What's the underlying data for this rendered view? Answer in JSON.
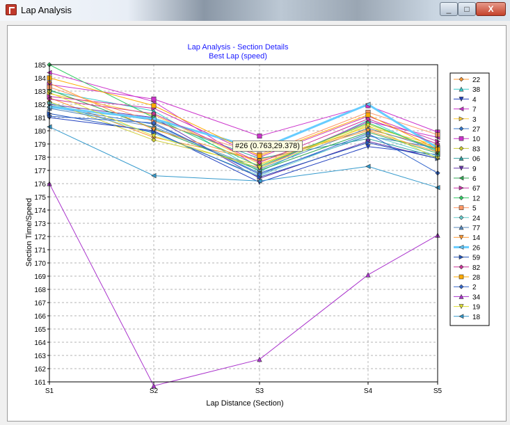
{
  "window": {
    "title": "Lap Analysis",
    "minimize_glyph": "_",
    "maximize_glyph": "□",
    "close_glyph": "X"
  },
  "tooltip": {
    "text": "#26 (0.763,29.378)"
  },
  "chart_data": {
    "type": "line",
    "title": "Lap Analysis - Section Details",
    "subtitle": "Best Lap (speed)",
    "xlabel": "Lap Distance (Section)",
    "ylabel": "Section Time/Speed",
    "categories": [
      "S1",
      "S2",
      "S3",
      "S4",
      "S5"
    ],
    "ylim": [
      161,
      185
    ],
    "yticks": [
      161,
      162,
      163,
      164,
      165,
      166,
      167,
      168,
      169,
      170,
      171,
      172,
      173,
      174,
      175,
      176,
      177,
      178,
      179,
      180,
      181,
      182,
      183,
      184,
      185
    ],
    "grid": true,
    "legend_position": "right",
    "series": [
      {
        "name": "22",
        "color": "#ff9933",
        "marker": "diamond",
        "values": [
          182.5,
          179.5,
          177.8,
          180.1,
          178.8
        ]
      },
      {
        "name": "38",
        "color": "#33cccc",
        "marker": "triangle",
        "values": [
          183.0,
          181.5,
          176.9,
          180.8,
          178.4
        ]
      },
      {
        "name": "4",
        "color": "#1f3fbf",
        "marker": "triangle-down",
        "values": [
          181.0,
          180.0,
          176.1,
          178.8,
          178.2
        ]
      },
      {
        "name": "7",
        "color": "#cc33cc",
        "marker": "triangle-left",
        "values": [
          184.4,
          182.2,
          177.2,
          180.7,
          179.5
        ]
      },
      {
        "name": "3",
        "color": "#ffcc33",
        "marker": "triangle-right",
        "values": [
          182.8,
          181.2,
          177.5,
          180.3,
          178.9
        ]
      },
      {
        "name": "27",
        "color": "#3377cc",
        "marker": "diamond",
        "values": [
          181.8,
          180.5,
          176.8,
          179.6,
          178.7
        ]
      },
      {
        "name": "10",
        "color": "#cc33cc",
        "marker": "square",
        "values": [
          183.5,
          182.4,
          179.6,
          181.9,
          179.9
        ]
      },
      {
        "name": "83",
        "color": "#cccc33",
        "marker": "diamond",
        "values": [
          182.2,
          179.3,
          177.4,
          180.5,
          178.6
        ]
      },
      {
        "name": "06",
        "color": "#33a0a0",
        "marker": "triangle",
        "values": [
          181.9,
          180.8,
          177.9,
          179.4,
          178.0
        ]
      },
      {
        "name": "9",
        "color": "#6633aa",
        "marker": "triangle-down",
        "values": [
          182.0,
          181.0,
          176.4,
          179.2,
          177.9
        ]
      },
      {
        "name": "6",
        "color": "#33aa55",
        "marker": "triangle-left",
        "values": [
          183.1,
          180.2,
          177.0,
          179.9,
          178.3
        ]
      },
      {
        "name": "67",
        "color": "#cc33aa",
        "marker": "triangle-right",
        "values": [
          182.6,
          181.7,
          178.0,
          181.1,
          179.2
        ]
      },
      {
        "name": "12",
        "color": "#33cc66",
        "marker": "diamond",
        "values": [
          185.0,
          181.0,
          177.3,
          180.6,
          178.5
        ]
      },
      {
        "name": "5",
        "color": "#ff9966",
        "marker": "square",
        "values": [
          183.3,
          180.7,
          178.2,
          181.4,
          179.7
        ]
      },
      {
        "name": "24",
        "color": "#66cccc",
        "marker": "diamond",
        "values": [
          182.1,
          179.8,
          176.6,
          179.7,
          178.1
        ]
      },
      {
        "name": "77",
        "color": "#5588bb",
        "marker": "triangle",
        "values": [
          181.7,
          180.3,
          177.1,
          180.2,
          178.6
        ]
      },
      {
        "name": "14",
        "color": "#ff9933",
        "marker": "triangle-down",
        "values": [
          183.6,
          180.1,
          177.7,
          180.0,
          178.4
        ]
      },
      {
        "name": "26",
        "color": "#66ccff",
        "marker": "triangle-left",
        "values": [
          181.8,
          180.9,
          178.6,
          182.0,
          178.7
        ]
      },
      {
        "name": "59",
        "color": "#2255bb",
        "marker": "triangle-right",
        "values": [
          181.3,
          179.9,
          176.5,
          179.1,
          177.9
        ]
      },
      {
        "name": "82",
        "color": "#cc3399",
        "marker": "diamond",
        "values": [
          182.4,
          181.3,
          177.6,
          180.9,
          179.0
        ]
      },
      {
        "name": "28",
        "color": "#ffaa00",
        "marker": "square",
        "values": [
          184.0,
          181.9,
          178.1,
          181.2,
          178.6
        ]
      },
      {
        "name": "2",
        "color": "#3366cc",
        "marker": "diamond",
        "values": [
          181.1,
          180.6,
          176.7,
          179.8,
          176.8
        ]
      },
      {
        "name": "34",
        "color": "#aa33cc",
        "marker": "triangle",
        "values": [
          176.0,
          160.7,
          162.7,
          169.1,
          172.1
        ]
      },
      {
        "name": "19",
        "color": "#dddd33",
        "marker": "triangle-down",
        "values": [
          182.9,
          179.6,
          177.2,
          180.4,
          177.9
        ]
      },
      {
        "name": "18",
        "color": "#3399cc",
        "marker": "triangle-left",
        "values": [
          180.3,
          176.6,
          176.2,
          177.3,
          175.7
        ]
      }
    ]
  }
}
